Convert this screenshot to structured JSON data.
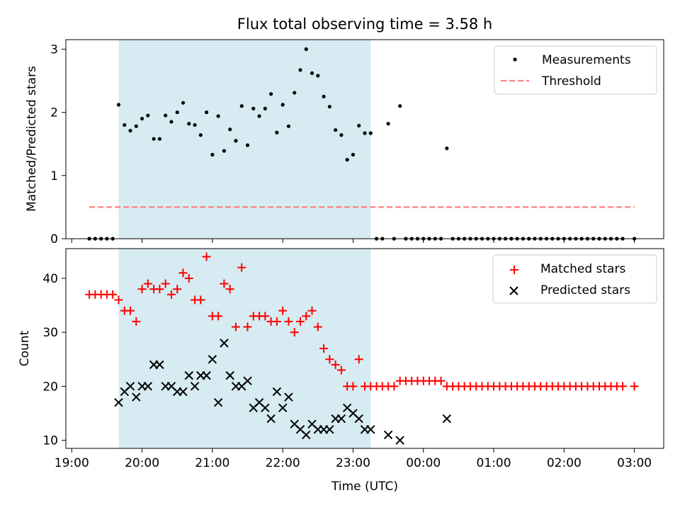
{
  "chart_data": [
    {
      "type": "scatter",
      "title": "Flux total observing time = 3.58 h",
      "xlabel": "",
      "ylabel": "Matched/Predicted stars",
      "ylim": [
        0,
        3.15
      ],
      "yticks": [
        "0",
        "1",
        "2",
        "3"
      ],
      "legend_position": "top-right",
      "shaded_interval": [
        "19:40",
        "23:15"
      ],
      "series": [
        {
          "name": "Measurements",
          "kind": "point",
          "color": "#000000",
          "points": [
            [
              "19:15",
              0
            ],
            [
              "19:20",
              0
            ],
            [
              "19:25",
              0
            ],
            [
              "19:30",
              0
            ],
            [
              "19:35",
              0
            ],
            [
              "19:40",
              2.12
            ],
            [
              "19:45",
              1.8
            ],
            [
              "19:50",
              1.71
            ],
            [
              "19:55",
              1.78
            ],
            [
              "20:00",
              1.9
            ],
            [
              "20:05",
              1.95
            ],
            [
              "20:10",
              1.58
            ],
            [
              "20:15",
              1.58
            ],
            [
              "20:20",
              1.95
            ],
            [
              "20:25",
              1.85
            ],
            [
              "20:30",
              2.0
            ],
            [
              "20:35",
              2.15
            ],
            [
              "20:40",
              1.82
            ],
            [
              "20:45",
              1.8
            ],
            [
              "20:50",
              1.64
            ],
            [
              "20:55",
              2.0
            ],
            [
              "21:00",
              1.33
            ],
            [
              "21:05",
              1.94
            ],
            [
              "21:10",
              1.39
            ],
            [
              "21:15",
              1.73
            ],
            [
              "21:20",
              1.55
            ],
            [
              "21:25",
              2.1
            ],
            [
              "21:30",
              1.48
            ],
            [
              "21:35",
              2.06
            ],
            [
              "21:40",
              1.94
            ],
            [
              "21:45",
              2.06
            ],
            [
              "21:50",
              2.29
            ],
            [
              "21:55",
              1.68
            ],
            [
              "22:00",
              2.12
            ],
            [
              "22:05",
              1.78
            ],
            [
              "22:10",
              2.31
            ],
            [
              "22:15",
              2.67
            ],
            [
              "22:20",
              3.0
            ],
            [
              "22:25",
              2.62
            ],
            [
              "22:30",
              2.58
            ],
            [
              "22:35",
              2.25
            ],
            [
              "22:40",
              2.09
            ],
            [
              "22:45",
              1.72
            ],
            [
              "22:50",
              1.64
            ],
            [
              "22:55",
              1.25
            ],
            [
              "23:00",
              1.33
            ],
            [
              "23:05",
              1.79
            ],
            [
              "23:10",
              1.67
            ],
            [
              "23:15",
              1.67
            ],
            [
              "23:20",
              0
            ],
            [
              "23:25",
              0
            ],
            [
              "23:30",
              1.82
            ],
            [
              "23:35",
              0
            ],
            [
              "23:40",
              2.1
            ],
            [
              "23:45",
              0
            ],
            [
              "23:50",
              0
            ],
            [
              "23:55",
              0
            ],
            [
              "00:00",
              0
            ],
            [
              "00:05",
              0
            ],
            [
              "00:10",
              0
            ],
            [
              "00:15",
              0
            ],
            [
              "00:20",
              1.43
            ],
            [
              "00:25",
              0
            ],
            [
              "00:30",
              0
            ],
            [
              "00:35",
              0
            ],
            [
              "00:40",
              0
            ],
            [
              "00:45",
              0
            ],
            [
              "00:50",
              0
            ],
            [
              "00:55",
              0
            ],
            [
              "01:00",
              0
            ],
            [
              "01:05",
              0
            ],
            [
              "01:10",
              0
            ],
            [
              "01:15",
              0
            ],
            [
              "01:20",
              0
            ],
            [
              "01:25",
              0
            ],
            [
              "01:30",
              0
            ],
            [
              "01:35",
              0
            ],
            [
              "01:40",
              0
            ],
            [
              "01:45",
              0
            ],
            [
              "01:50",
              0
            ],
            [
              "01:55",
              0
            ],
            [
              "02:00",
              0
            ],
            [
              "02:05",
              0
            ],
            [
              "02:10",
              0
            ],
            [
              "02:15",
              0
            ],
            [
              "02:20",
              0
            ],
            [
              "02:25",
              0
            ],
            [
              "02:30",
              0
            ],
            [
              "02:35",
              0
            ],
            [
              "02:40",
              0
            ],
            [
              "02:45",
              0
            ],
            [
              "02:50",
              0
            ],
            [
              "03:00",
              0
            ]
          ]
        },
        {
          "name": "Threshold",
          "kind": "dashed-line",
          "color": "#ff8080",
          "points": [
            [
              "19:15",
              0.5
            ],
            [
              "03:00",
              0.5
            ]
          ]
        }
      ]
    },
    {
      "type": "scatter",
      "title": "",
      "xlabel": "Time (UTC)",
      "ylabel": "Count",
      "ylim": [
        8.5,
        45.5
      ],
      "yticks": [
        "10",
        "20",
        "30",
        "40"
      ],
      "xlim": [
        "18:55",
        "03:25"
      ],
      "xticks": [
        "19:00",
        "20:00",
        "21:00",
        "22:00",
        "23:00",
        "00:00",
        "01:00",
        "02:00",
        "03:00"
      ],
      "legend_position": "top-right",
      "shaded_interval": [
        "19:40",
        "23:15"
      ],
      "series": [
        {
          "name": "Matched stars",
          "kind": "plus",
          "color": "#ff0000",
          "points": [
            [
              "19:15",
              37
            ],
            [
              "19:20",
              37
            ],
            [
              "19:25",
              37
            ],
            [
              "19:30",
              37
            ],
            [
              "19:35",
              37
            ],
            [
              "19:40",
              36
            ],
            [
              "19:45",
              34
            ],
            [
              "19:50",
              34
            ],
            [
              "19:55",
              32
            ],
            [
              "20:00",
              38
            ],
            [
              "20:05",
              39
            ],
            [
              "20:10",
              38
            ],
            [
              "20:15",
              38
            ],
            [
              "20:20",
              39
            ],
            [
              "20:25",
              37
            ],
            [
              "20:30",
              38
            ],
            [
              "20:35",
              41
            ],
            [
              "20:40",
              40
            ],
            [
              "20:45",
              36
            ],
            [
              "20:50",
              36
            ],
            [
              "20:55",
              44
            ],
            [
              "21:00",
              33
            ],
            [
              "21:05",
              33
            ],
            [
              "21:10",
              39
            ],
            [
              "21:15",
              38
            ],
            [
              "21:20",
              31
            ],
            [
              "21:25",
              42
            ],
            [
              "21:30",
              31
            ],
            [
              "21:35",
              33
            ],
            [
              "21:40",
              33
            ],
            [
              "21:45",
              33
            ],
            [
              "21:50",
              32
            ],
            [
              "21:55",
              32
            ],
            [
              "22:00",
              34
            ],
            [
              "22:05",
              32
            ],
            [
              "22:10",
              30
            ],
            [
              "22:15",
              32
            ],
            [
              "22:20",
              33
            ],
            [
              "22:25",
              34
            ],
            [
              "22:30",
              31
            ],
            [
              "22:35",
              27
            ],
            [
              "22:40",
              25
            ],
            [
              "22:45",
              24
            ],
            [
              "22:50",
              23
            ],
            [
              "22:55",
              20
            ],
            [
              "23:00",
              20
            ],
            [
              "23:05",
              25
            ],
            [
              "23:10",
              20
            ],
            [
              "23:15",
              20
            ],
            [
              "23:20",
              20
            ],
            [
              "23:25",
              20
            ],
            [
              "23:30",
              20
            ],
            [
              "23:35",
              20
            ],
            [
              "23:40",
              21
            ],
            [
              "23:45",
              21
            ],
            [
              "23:50",
              21
            ],
            [
              "23:55",
              21
            ],
            [
              "00:00",
              21
            ],
            [
              "00:05",
              21
            ],
            [
              "00:10",
              21
            ],
            [
              "00:15",
              21
            ],
            [
              "00:20",
              20
            ],
            [
              "00:25",
              20
            ],
            [
              "00:30",
              20
            ],
            [
              "00:35",
              20
            ],
            [
              "00:40",
              20
            ],
            [
              "00:45",
              20
            ],
            [
              "00:50",
              20
            ],
            [
              "00:55",
              20
            ],
            [
              "01:00",
              20
            ],
            [
              "01:05",
              20
            ],
            [
              "01:10",
              20
            ],
            [
              "01:15",
              20
            ],
            [
              "01:20",
              20
            ],
            [
              "01:25",
              20
            ],
            [
              "01:30",
              20
            ],
            [
              "01:35",
              20
            ],
            [
              "01:40",
              20
            ],
            [
              "01:45",
              20
            ],
            [
              "01:50",
              20
            ],
            [
              "01:55",
              20
            ],
            [
              "02:00",
              20
            ],
            [
              "02:05",
              20
            ],
            [
              "02:10",
              20
            ],
            [
              "02:15",
              20
            ],
            [
              "02:20",
              20
            ],
            [
              "02:25",
              20
            ],
            [
              "02:30",
              20
            ],
            [
              "02:35",
              20
            ],
            [
              "02:40",
              20
            ],
            [
              "02:45",
              20
            ],
            [
              "02:50",
              20
            ],
            [
              "03:00",
              20
            ]
          ]
        },
        {
          "name": "Predicted stars",
          "kind": "cross",
          "color": "#000000",
          "points": [
            [
              "19:40",
              17
            ],
            [
              "19:45",
              19
            ],
            [
              "19:50",
              20
            ],
            [
              "19:55",
              18
            ],
            [
              "20:00",
              20
            ],
            [
              "20:05",
              20
            ],
            [
              "20:10",
              24
            ],
            [
              "20:15",
              24
            ],
            [
              "20:20",
              20
            ],
            [
              "20:25",
              20
            ],
            [
              "20:30",
              19
            ],
            [
              "20:35",
              19
            ],
            [
              "20:40",
              22
            ],
            [
              "20:45",
              20
            ],
            [
              "20:50",
              22
            ],
            [
              "20:55",
              22
            ],
            [
              "21:00",
              25
            ],
            [
              "21:05",
              17
            ],
            [
              "21:10",
              28
            ],
            [
              "21:15",
              22
            ],
            [
              "21:20",
              20
            ],
            [
              "21:25",
              20
            ],
            [
              "21:30",
              21
            ],
            [
              "21:35",
              16
            ],
            [
              "21:40",
              17
            ],
            [
              "21:45",
              16
            ],
            [
              "21:50",
              14
            ],
            [
              "21:55",
              19
            ],
            [
              "22:00",
              16
            ],
            [
              "22:05",
              18
            ],
            [
              "22:10",
              13
            ],
            [
              "22:15",
              12
            ],
            [
              "22:20",
              11
            ],
            [
              "22:25",
              13
            ],
            [
              "22:30",
              12
            ],
            [
              "22:35",
              12
            ],
            [
              "22:40",
              12
            ],
            [
              "22:45",
              14
            ],
            [
              "22:50",
              14
            ],
            [
              "22:55",
              16
            ],
            [
              "23:00",
              15
            ],
            [
              "23:05",
              14
            ],
            [
              "23:10",
              12
            ],
            [
              "23:15",
              12
            ],
            [
              "23:30",
              11
            ],
            [
              "23:40",
              10
            ],
            [
              "00:20",
              14
            ]
          ]
        }
      ]
    }
  ]
}
